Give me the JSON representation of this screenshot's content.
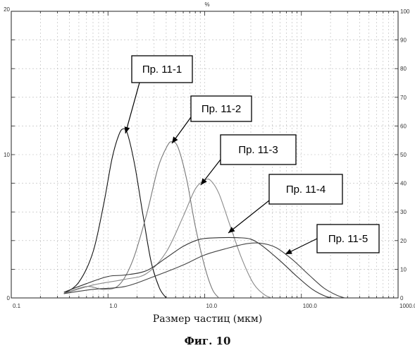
{
  "chart_data": {
    "type": "line",
    "xscale": "log",
    "xlim": [
      0.1,
      1000
    ],
    "ylim_left": [
      0,
      20
    ],
    "ylim_right": [
      0,
      100
    ],
    "left_ticks": [
      "0",
      "10",
      "20"
    ],
    "right_ticks": [
      "0",
      "10",
      "20",
      "30",
      "40",
      "50",
      "60",
      "70",
      "80",
      "90",
      "100"
    ],
    "right_axis_unit": "%",
    "x_ticks": [
      {
        "v": 0.1,
        "label": "0.1"
      },
      {
        "v": 1,
        "label": "1.0"
      },
      {
        "v": 10,
        "label": "10.0"
      },
      {
        "v": 100,
        "label": "100.0"
      },
      {
        "v": 1000,
        "label": "1000.0"
      }
    ],
    "xlabel": "Размер частиц (мкм)",
    "grid": true,
    "series": [
      {
        "name": "Пр. 11-1",
        "points": [
          [
            0.35,
            0.3
          ],
          [
            0.5,
            1.1
          ],
          [
            0.7,
            3.2
          ],
          [
            0.9,
            6.5
          ],
          [
            1.1,
            9.7
          ],
          [
            1.3,
            11.4
          ],
          [
            1.45,
            11.8
          ],
          [
            1.6,
            11.4
          ],
          [
            1.9,
            9.2
          ],
          [
            2.3,
            5.8
          ],
          [
            2.8,
            2.5
          ],
          [
            3.4,
            0.7
          ],
          [
            4.0,
            0
          ]
        ]
      },
      {
        "name": "Пр. 11-2",
        "points": [
          [
            0.35,
            0.3
          ],
          [
            0.6,
            0.8
          ],
          [
            0.9,
            0.6
          ],
          [
            1.3,
            0.9
          ],
          [
            1.8,
            2.6
          ],
          [
            2.5,
            5.8
          ],
          [
            3.3,
            9.1
          ],
          [
            4.1,
            10.6
          ],
          [
            4.6,
            10.9
          ],
          [
            5.3,
            10.5
          ],
          [
            6.5,
            8.3
          ],
          [
            8.0,
            5.0
          ],
          [
            10.0,
            2.2
          ],
          [
            12.0,
            0.6
          ],
          [
            14.0,
            0
          ]
        ]
      },
      {
        "name": "Пр. 11-3",
        "points": [
          [
            0.35,
            0.3
          ],
          [
            0.7,
            0.9
          ],
          [
            1.5,
            1.3
          ],
          [
            2.5,
            1.7
          ],
          [
            4.0,
            3.2
          ],
          [
            6.0,
            5.7
          ],
          [
            8.0,
            7.6
          ],
          [
            10.0,
            8.2
          ],
          [
            11.5,
            8.2
          ],
          [
            14.0,
            7.3
          ],
          [
            18.0,
            5.2
          ],
          [
            24.0,
            2.8
          ],
          [
            32.0,
            1.0
          ],
          [
            42.0,
            0.2
          ],
          [
            50.0,
            0
          ]
        ]
      },
      {
        "name": "Пр. 11-4",
        "points": [
          [
            0.35,
            0.4
          ],
          [
            0.6,
            1.0
          ],
          [
            1.0,
            1.5
          ],
          [
            1.5,
            1.6
          ],
          [
            2.5,
            1.9
          ],
          [
            4.0,
            2.8
          ],
          [
            6.0,
            3.6
          ],
          [
            9.0,
            4.1
          ],
          [
            14.0,
            4.2
          ],
          [
            22.0,
            4.2
          ],
          [
            30.0,
            4.1
          ],
          [
            40.0,
            3.6
          ],
          [
            60.0,
            2.6
          ],
          [
            90.0,
            1.5
          ],
          [
            130.0,
            0.6
          ],
          [
            180.0,
            0.1
          ],
          [
            220.0,
            0
          ]
        ]
      },
      {
        "name": "Пр. 11-5",
        "points": [
          [
            0.35,
            0.3
          ],
          [
            0.7,
            0.6
          ],
          [
            1.5,
            0.8
          ],
          [
            3.0,
            1.5
          ],
          [
            6.0,
            2.3
          ],
          [
            10.0,
            3.0
          ],
          [
            18.0,
            3.5
          ],
          [
            28.0,
            3.8
          ],
          [
            40.0,
            3.8
          ],
          [
            55.0,
            3.5
          ],
          [
            80.0,
            2.7
          ],
          [
            120.0,
            1.6
          ],
          [
            170.0,
            0.7
          ],
          [
            230.0,
            0.2
          ],
          [
            280.0,
            0
          ]
        ]
      }
    ]
  }
}
